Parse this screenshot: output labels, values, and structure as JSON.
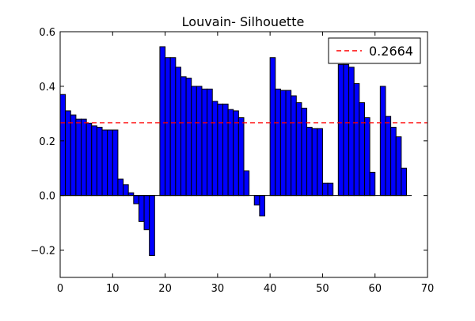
{
  "chart_data": {
    "type": "bar",
    "title": "Louvain- Silhouette",
    "xlabel": "",
    "ylabel": "",
    "xlim": [
      0,
      70
    ],
    "ylim": [
      -0.3,
      0.6
    ],
    "xticks": [
      0,
      10,
      20,
      30,
      40,
      50,
      60,
      70
    ],
    "yticks": [
      -0.2,
      0.0,
      0.2,
      0.4,
      0.6
    ],
    "xtick_labels": [
      "0",
      "10",
      "20",
      "30",
      "40",
      "50",
      "60",
      "70"
    ],
    "ytick_labels": [
      "−0.2",
      "0.0",
      "0.2",
      "0.4",
      "0.6"
    ],
    "bar_color": "#0000ff",
    "bar_edge_color": "#000000",
    "reference_line": {
      "value": 0.2664,
      "label": "0.2664",
      "color": "#ff0000",
      "style": "dashed"
    },
    "legend_position": "top-right",
    "grid": false,
    "x": [
      0,
      1,
      2,
      3,
      4,
      5,
      6,
      7,
      8,
      9,
      10,
      11,
      12,
      13,
      14,
      15,
      16,
      17,
      18,
      19,
      20,
      21,
      22,
      23,
      24,
      25,
      26,
      27,
      28,
      29,
      30,
      31,
      32,
      33,
      34,
      35,
      36,
      37,
      38,
      39,
      40,
      41,
      42,
      43,
      44,
      45,
      46,
      47,
      48,
      49,
      50,
      51,
      52,
      53,
      54,
      55,
      56,
      57,
      58,
      59,
      60,
      61,
      62,
      63,
      64,
      65,
      66
    ],
    "values": [
      0.37,
      0.31,
      0.295,
      0.28,
      0.28,
      0.265,
      0.255,
      0.25,
      0.24,
      0.24,
      0.24,
      0.06,
      0.04,
      0.01,
      -0.03,
      -0.095,
      -0.125,
      -0.22,
      0.0,
      0.545,
      0.505,
      0.505,
      0.47,
      0.435,
      0.43,
      0.4,
      0.4,
      0.39,
      0.39,
      0.345,
      0.335,
      0.335,
      0.315,
      0.31,
      0.285,
      0.09,
      0.0,
      -0.035,
      -0.075,
      0.0,
      0.505,
      0.39,
      0.385,
      0.385,
      0.365,
      0.34,
      0.32,
      0.25,
      0.245,
      0.245,
      0.045,
      0.045,
      0.0,
      0.48,
      0.48,
      0.47,
      0.41,
      0.34,
      0.285,
      0.085,
      0.0,
      0.4,
      0.29,
      0.25,
      0.215,
      0.1,
      0.0
    ]
  }
}
